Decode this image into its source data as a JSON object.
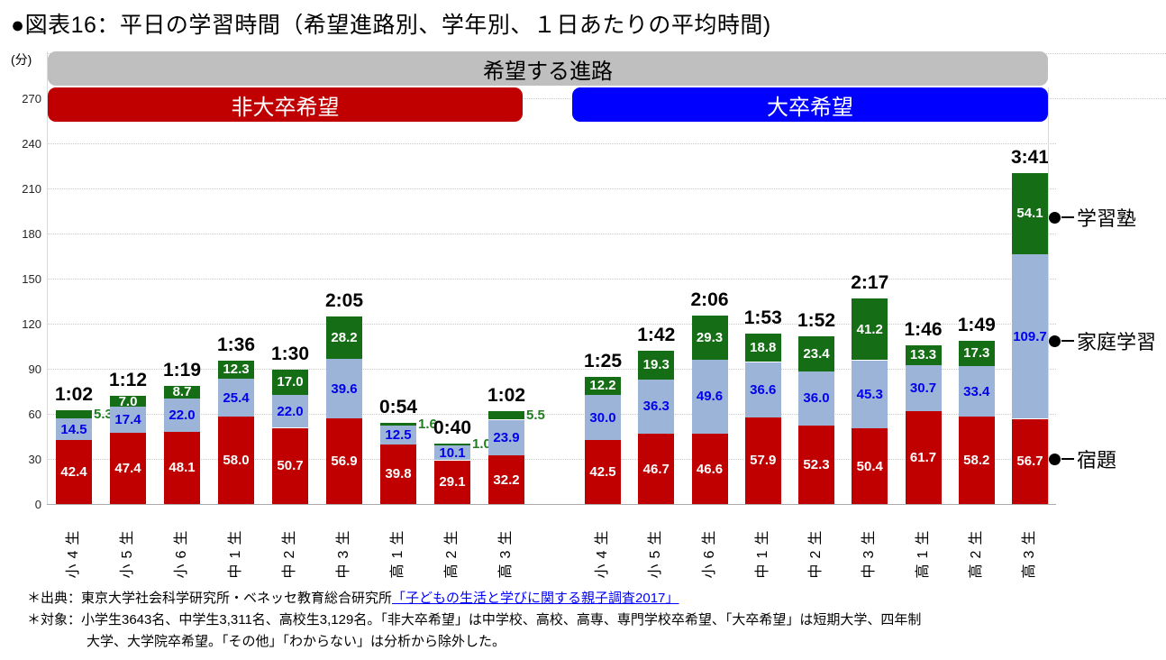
{
  "title": "●図表16：平日の学習時間（希望進路別、学年別、１日あたりの平均時間)",
  "y_axis": {
    "unit": "(分)",
    "tick_labels": [
      0,
      30,
      60,
      90,
      120,
      150,
      180,
      210,
      240,
      270
    ]
  },
  "header": {
    "banner": "希望する進路",
    "groups": [
      {
        "label": "非大卒希望",
        "color": "#c00000"
      },
      {
        "label": "大卒希望",
        "color": "#0000ff"
      }
    ]
  },
  "legend": [
    {
      "label": "学習塾",
      "color": "#156e15"
    },
    {
      "label": "家庭学習",
      "color": "#9bb4d7"
    },
    {
      "label": "宿題",
      "color": "#c00000"
    }
  ],
  "chart_data": {
    "type": "bar",
    "stacked": true,
    "unit": "minutes_per_day",
    "ylim": [
      0,
      300
    ],
    "ytick_step": 30,
    "ytick_labeled_max": 270,
    "grid": true,
    "series_order": [
      "宿題",
      "家庭学習",
      "学習塾"
    ],
    "series_styles": {
      "宿題": {
        "color": "#c00000",
        "label_color": "#ffffff"
      },
      "家庭学習": {
        "color": "#9bb4d7",
        "label_color": "#0000ee"
      },
      "学習塾": {
        "color": "#156e15",
        "label_color": "#ffffff",
        "label_color_outside": "#1e7e1e",
        "outside_threshold": 6
      }
    },
    "groups": [
      {
        "label": "非大卒希望",
        "categories": [
          "小4生",
          "小5生",
          "小6生",
          "中1生",
          "中2生",
          "中3生",
          "高1生",
          "高2生",
          "高3生"
        ],
        "series": [
          {
            "name": "宿題",
            "values": [
              42.4,
              47.4,
              48.1,
              58.0,
              50.7,
              56.9,
              39.8,
              29.1,
              32.2
            ]
          },
          {
            "name": "家庭学習",
            "values": [
              14.5,
              17.4,
              22.0,
              25.4,
              22.0,
              39.6,
              12.5,
              10.1,
              23.9
            ]
          },
          {
            "name": "学習塾",
            "values": [
              5.3,
              7.0,
              8.7,
              12.3,
              17.0,
              28.2,
              1.6,
              1.0,
              5.5
            ]
          }
        ],
        "totals": [
          "1:02",
          "1:12",
          "1:19",
          "1:36",
          "1:30",
          "2:05",
          "0:54",
          "0:40",
          "1:02"
        ]
      },
      {
        "label": "大卒希望",
        "categories": [
          "小4生",
          "小5生",
          "小6生",
          "中1生",
          "中2生",
          "中3生",
          "高1生",
          "高2生",
          "高3生"
        ],
        "series": [
          {
            "name": "宿題",
            "values": [
              42.5,
              46.7,
              46.6,
              57.9,
              52.3,
              50.4,
              61.7,
              58.2,
              56.7
            ]
          },
          {
            "name": "家庭学習",
            "values": [
              30.0,
              36.3,
              49.6,
              36.6,
              36.0,
              45.3,
              30.7,
              33.4,
              109.7
            ]
          },
          {
            "name": "学習塾",
            "values": [
              12.2,
              19.3,
              29.3,
              18.8,
              23.4,
              41.2,
              13.3,
              17.3,
              54.1
            ]
          }
        ],
        "totals": [
          "1:25",
          "1:42",
          "2:06",
          "1:53",
          "1:52",
          "2:17",
          "1:46",
          "1:49",
          "3:41"
        ]
      }
    ]
  },
  "footnotes": {
    "source_prefix": "＊出典：東京大学社会科学研究所・ベネッセ教育総合研究所",
    "source_link": "「子どもの生活と学びに関する親子調査2017」",
    "target_line1": "＊対象：小学生3643名、中学生3,311名、高校生3,129名。「非大卒希望」は中学校、高校、高専、専門学校卒希望、「大卒希望」は短期大学、四年制",
    "target_line2": "大学、大学院卒希望。「その他」「わからない」は分析から除外した。"
  }
}
